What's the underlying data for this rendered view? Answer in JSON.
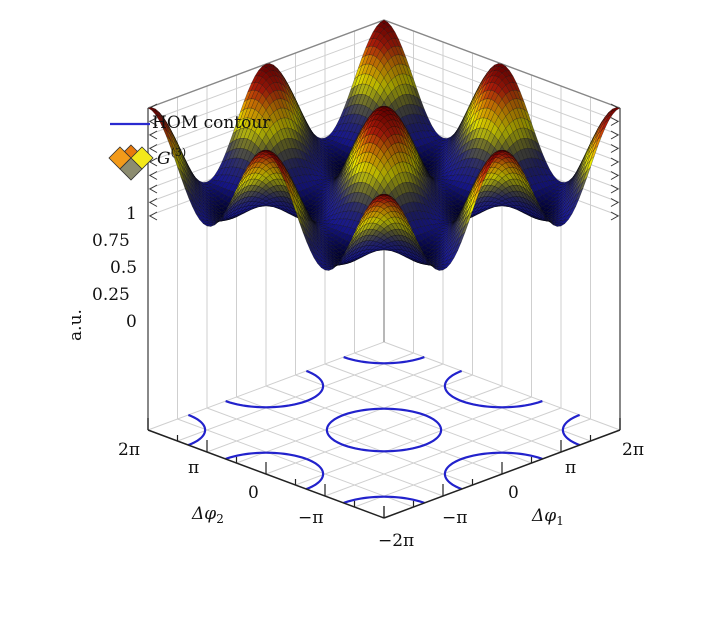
{
  "chart_data": {
    "type": "surface3d",
    "title": "",
    "xlabel": "Δφ1",
    "ylabel": "Δφ2",
    "zlabel": "a.u.",
    "x_range": [
      -6.2832,
      6.2832
    ],
    "y_range": [
      -6.2832,
      6.2832
    ],
    "z_range": [
      0,
      1
    ],
    "x_ticks": [
      "−2π",
      "−π",
      "0",
      "π",
      "2π"
    ],
    "y_ticks": [
      "−π",
      "0",
      "π",
      "2π"
    ],
    "z_ticks": [
      "0",
      "0.25",
      "0.5",
      "0.75",
      "1"
    ],
    "grid": true,
    "legend_position": "top-left",
    "series": [
      {
        "name": "G(3)",
        "kind": "surface",
        "function": "(3 + 2cos(Δφ1) + 2cos(Δφ2) + 2cos(Δφ1−Δφ2)) / 9",
        "colormap": [
          "#000033",
          "#1a1aa0",
          "#2b2b7a",
          "#6b6b3a",
          "#e6e600",
          "#e69a00",
          "#c0200a",
          "#7a0000"
        ],
        "peak_value": 1,
        "peak_locations": [
          [
            0,
            0
          ],
          [
            6.2832,
            6.2832
          ],
          [
            -6.2832,
            -6.2832
          ],
          [
            6.2832,
            0
          ],
          [
            0,
            6.2832
          ],
          [
            -6.2832,
            0
          ],
          [
            0,
            -6.2832
          ]
        ]
      },
      {
        "name": "HOM contour",
        "kind": "contour",
        "color": "#2222cc",
        "level": 0.0,
        "projected_on": "floor"
      }
    ]
  },
  "legend": {
    "items": [
      {
        "label": "HOM contour",
        "icon": "blue-line",
        "color": "#2a2ad0"
      },
      {
        "label_base": "G",
        "label_sup": "(3)",
        "icon": "surface-swatch"
      }
    ]
  },
  "axes": {
    "z_label": "a.u.",
    "z_ticks": [
      "1",
      "0.75",
      "0.5",
      "0.25",
      "0"
    ],
    "x_label": "Δφ",
    "x_label_sub": "1",
    "y_label": "Δφ",
    "y_label_sub": "2",
    "x_ticks": [
      "−2π",
      "−π",
      "0",
      "π",
      "2π"
    ],
    "y_ticks": [
      "2π",
      "π",
      "0",
      "−π"
    ]
  }
}
